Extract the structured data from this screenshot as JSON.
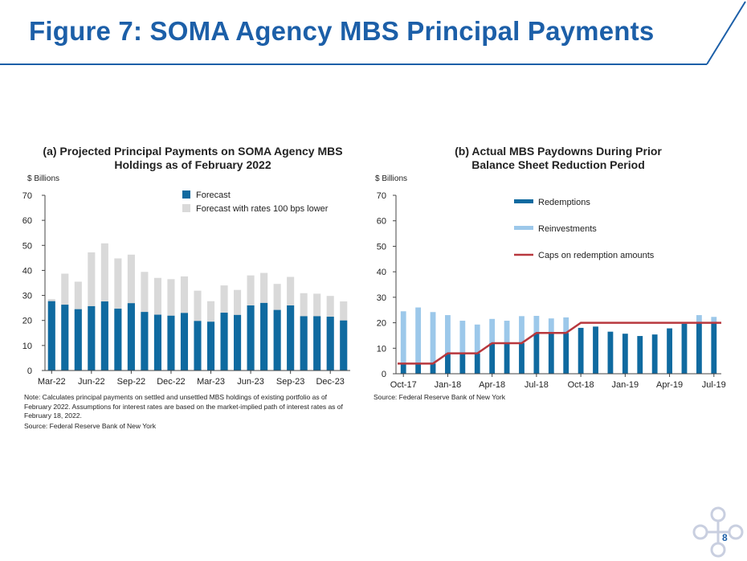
{
  "slide": {
    "title": "Figure 7: SOMA Agency MBS Principal Payments",
    "page_number": "8"
  },
  "colors": {
    "brand_blue": "#1c5fa8",
    "dark_blue": "#0f6aa0",
    "light_gray": "#d9d9d9",
    "light_blue": "#9cc8ea",
    "cap_red": "#b8383e"
  },
  "chart_data": [
    {
      "type": "bar",
      "title": "(a) Projected Principal Payments on SOMA Agency MBS Holdings as of February 2022",
      "ylabel": "$ Billions",
      "ylim": [
        0,
        70
      ],
      "yticks": [
        0,
        10,
        20,
        30,
        40,
        50,
        60,
        70
      ],
      "x_tick_labels": [
        "Mar-22",
        "Jun-22",
        "Sep-22",
        "Dec-22",
        "Mar-23",
        "Jun-23",
        "Sep-23",
        "Dec-23"
      ],
      "categories": [
        "Mar-22",
        "Apr-22",
        "May-22",
        "Jun-22",
        "Jul-22",
        "Aug-22",
        "Sep-22",
        "Oct-22",
        "Nov-22",
        "Dec-22",
        "Jan-23",
        "Feb-23",
        "Mar-23",
        "Apr-23",
        "May-23",
        "Jun-23",
        "Jul-23",
        "Aug-23",
        "Sep-23",
        "Oct-23",
        "Nov-23",
        "Dec-23",
        "Jan-24"
      ],
      "series": [
        {
          "name": "Forecast",
          "values": [
            27.7,
            26.3,
            24.5,
            25.7,
            27.6,
            24.7,
            26.9,
            23.4,
            22.3,
            21.9,
            23,
            19.8,
            19.5,
            23.1,
            22.2,
            26,
            27,
            24.2,
            26,
            21.7,
            21.7,
            21.5,
            20
          ]
        },
        {
          "name": "Forecast with rates 100 bps lower",
          "values": [
            28.5,
            38.7,
            35.5,
            47.2,
            50.8,
            44.8,
            46.3,
            39.4,
            37,
            36.5,
            37.6,
            31.9,
            27.7,
            34,
            32.2,
            38,
            39,
            34.6,
            37.4,
            30.9,
            30.7,
            29.8,
            27.6
          ]
        }
      ],
      "legend_position": "top-right",
      "note": "Note: Calculates principal payments on settled and unsettled MBS holdings of existing portfolio as of February 2022. Assumptions for interest rates are based on the market-implied  path of interest rates as of February 18, 2022.",
      "source": "Source: Federal Reserve Bank of New York"
    },
    {
      "type": "bar",
      "title": "(b) Actual MBS Paydowns During Prior Balance Sheet Reduction Period",
      "ylabel": "$ Billions",
      "ylim": [
        0,
        70
      ],
      "yticks": [
        0,
        10,
        20,
        30,
        40,
        50,
        60,
        70
      ],
      "x_tick_labels": [
        "Oct-17",
        "Jan-18",
        "Apr-18",
        "Jul-18",
        "Oct-18",
        "Jan-19",
        "Apr-19",
        "Jul-19"
      ],
      "categories": [
        "Oct-17",
        "Nov-17",
        "Dec-17",
        "Jan-18",
        "Feb-18",
        "Mar-18",
        "Apr-18",
        "May-18",
        "Jun-18",
        "Jul-18",
        "Aug-18",
        "Sep-18",
        "Oct-18",
        "Nov-18",
        "Dec-18",
        "Jan-19",
        "Feb-19",
        "Mar-19",
        "Apr-19",
        "May-19",
        "Jun-19",
        "Jul-19"
      ],
      "series": [
        {
          "name": "Redemptions",
          "type": "bar",
          "values": [
            4,
            4,
            4,
            8,
            8,
            8,
            12,
            12,
            12,
            16,
            16,
            16,
            18,
            18.5,
            16.5,
            15.7,
            14.8,
            15.4,
            17.8,
            19.6,
            20,
            20
          ]
        },
        {
          "name": "Reinvestments",
          "type": "bar",
          "values": [
            20.5,
            22,
            20.2,
            15,
            12.8,
            11.3,
            9.5,
            8.8,
            10.6,
            6.7,
            5.7,
            6.1,
            0,
            0,
            0,
            0,
            0,
            0,
            0,
            0,
            3,
            2.3
          ]
        },
        {
          "name": "Caps on redemption amounts",
          "type": "line",
          "values": [
            4,
            4,
            4,
            8,
            8,
            8,
            12,
            12,
            12,
            16,
            16,
            16,
            20,
            20,
            20,
            20,
            20,
            20,
            20,
            20,
            20,
            20
          ]
        }
      ],
      "legend_position": "top-center",
      "source": "Source: Federal Reserve Bank of New York"
    }
  ]
}
